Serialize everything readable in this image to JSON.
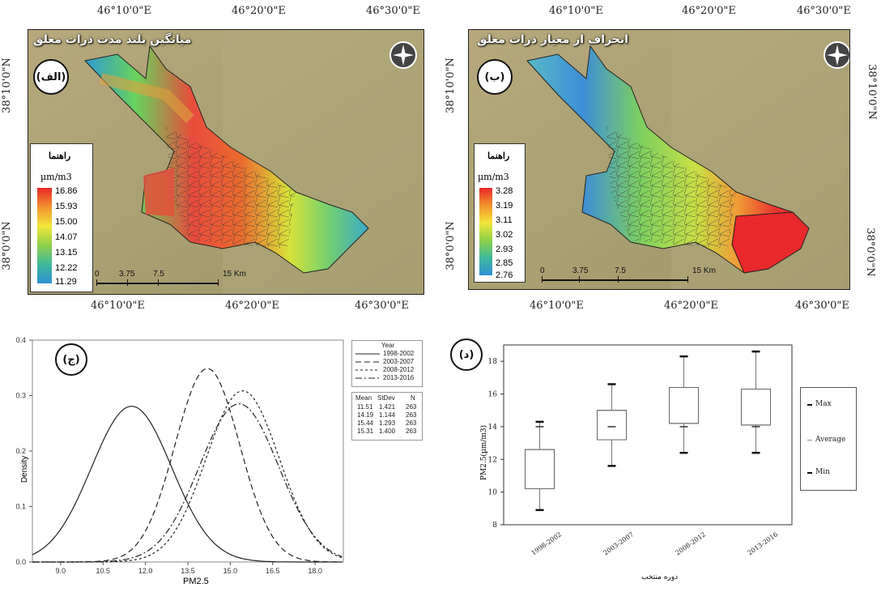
{
  "maps": [
    {
      "id": "alef",
      "title": "میانگین بلند مدت ذرات معلق",
      "badge": "(الف)",
      "legend_title": "راهنما",
      "legend_unit": "µm/m3",
      "legend_values": [
        "16.86",
        "15.93",
        "15.00",
        "14.07",
        "13.15",
        "12.22",
        "11.29"
      ],
      "top_ticks": [
        "46°10'0\"E",
        "46°20'0\"E",
        "46°30'0\"E"
      ],
      "bottom_ticks": [
        "46°10'0\"E",
        "46°20'0\"E",
        "46°30'0\"E"
      ],
      "left_ticks": [
        "38°10'0\"N",
        "38°0'0\"N"
      ],
      "scale_labels": [
        "0",
        "3.75",
        "7.5",
        "15 Km"
      ]
    },
    {
      "id": "be",
      "title": "انحراف از معیار ذرات معلق",
      "badge": "(ب)",
      "legend_title": "راهنما",
      "legend_unit": "µm/m3",
      "legend_values": [
        "3.28",
        "3.19",
        "3.11",
        "3.02",
        "2.93",
        "2.85",
        "2.76"
      ],
      "top_ticks": [
        "46°10'0\"E",
        "46°20'0\"E",
        "46°30'0\"E"
      ],
      "bottom_ticks": [
        "46°10'0\"E",
        "46°20'0\"E",
        "46°30'0\"E"
      ],
      "left_ticks": [
        "38°10'0\"N",
        "38°0'0\"N"
      ],
      "right_ticks": [
        "38°10'0\"N",
        "38°0'0\"N"
      ],
      "scale_labels": [
        "0",
        "3.75",
        "7.5",
        "15 Km"
      ]
    }
  ],
  "chart_data": [
    {
      "type": "line",
      "badge": "(ج)",
      "xlabel": "PM2.5",
      "ylabel": "Density",
      "xlim": [
        8.0,
        19.0
      ],
      "ylim": [
        0.0,
        0.4
      ],
      "x_ticks": [
        "9.0",
        "10.5",
        "12.0",
        "13.5",
        "15.0",
        "16.5",
        "18.0"
      ],
      "y_ticks": [
        "0.0",
        "0.1",
        "0.2",
        "0.3",
        "0.4"
      ],
      "legend_title": "Year",
      "series": [
        {
          "name": "1998-2002",
          "mean": 11.51,
          "stdev": 1.421,
          "n": 263,
          "dash": ""
        },
        {
          "name": "2003-2007",
          "mean": 14.19,
          "stdev": 1.144,
          "n": 263,
          "dash": "7,4"
        },
        {
          "name": "2008-2012",
          "mean": 15.44,
          "stdev": 1.293,
          "n": 263,
          "dash": "3,3"
        },
        {
          "name": "2013-2016",
          "mean": 15.31,
          "stdev": 1.4,
          "n": 263,
          "dash": "8,3,2,3"
        }
      ],
      "stats_headers": [
        "Mean",
        "StDev",
        "N"
      ],
      "stats_rows": [
        [
          "11.51",
          "1.421",
          "263"
        ],
        [
          "14.19",
          "1.144",
          "263"
        ],
        [
          "15.44",
          "1.293",
          "263"
        ],
        [
          "15.31",
          "1.400",
          "263"
        ]
      ]
    },
    {
      "type": "box",
      "badge": "(د)",
      "xlabel": "دوره منتخب",
      "ylabel": "PM2.5(µm/m3)",
      "ylim": [
        8,
        19
      ],
      "y_ticks": [
        "8",
        "10",
        "12",
        "14",
        "16",
        "18"
      ],
      "categories": [
        "1998-2002",
        "2003-2007",
        "2008-2012",
        "2013-2016"
      ],
      "boxes": [
        {
          "min": 8.9,
          "q1": 10.2,
          "median": 12.6,
          "q3": 12.6,
          "max": 14.3,
          "average": 14.0
        },
        {
          "min": 11.6,
          "q1": 13.2,
          "median": 15.0,
          "q3": 15.0,
          "max": 16.6,
          "average": 14.0
        },
        {
          "min": 12.4,
          "q1": 14.2,
          "median": 14.2,
          "q3": 16.4,
          "max": 18.3,
          "average": 14.0
        },
        {
          "min": 12.4,
          "q1": 14.1,
          "median": 14.1,
          "q3": 16.3,
          "max": 18.6,
          "average": 14.0
        }
      ],
      "legend": [
        "Max",
        "Average",
        "Min"
      ]
    }
  ]
}
